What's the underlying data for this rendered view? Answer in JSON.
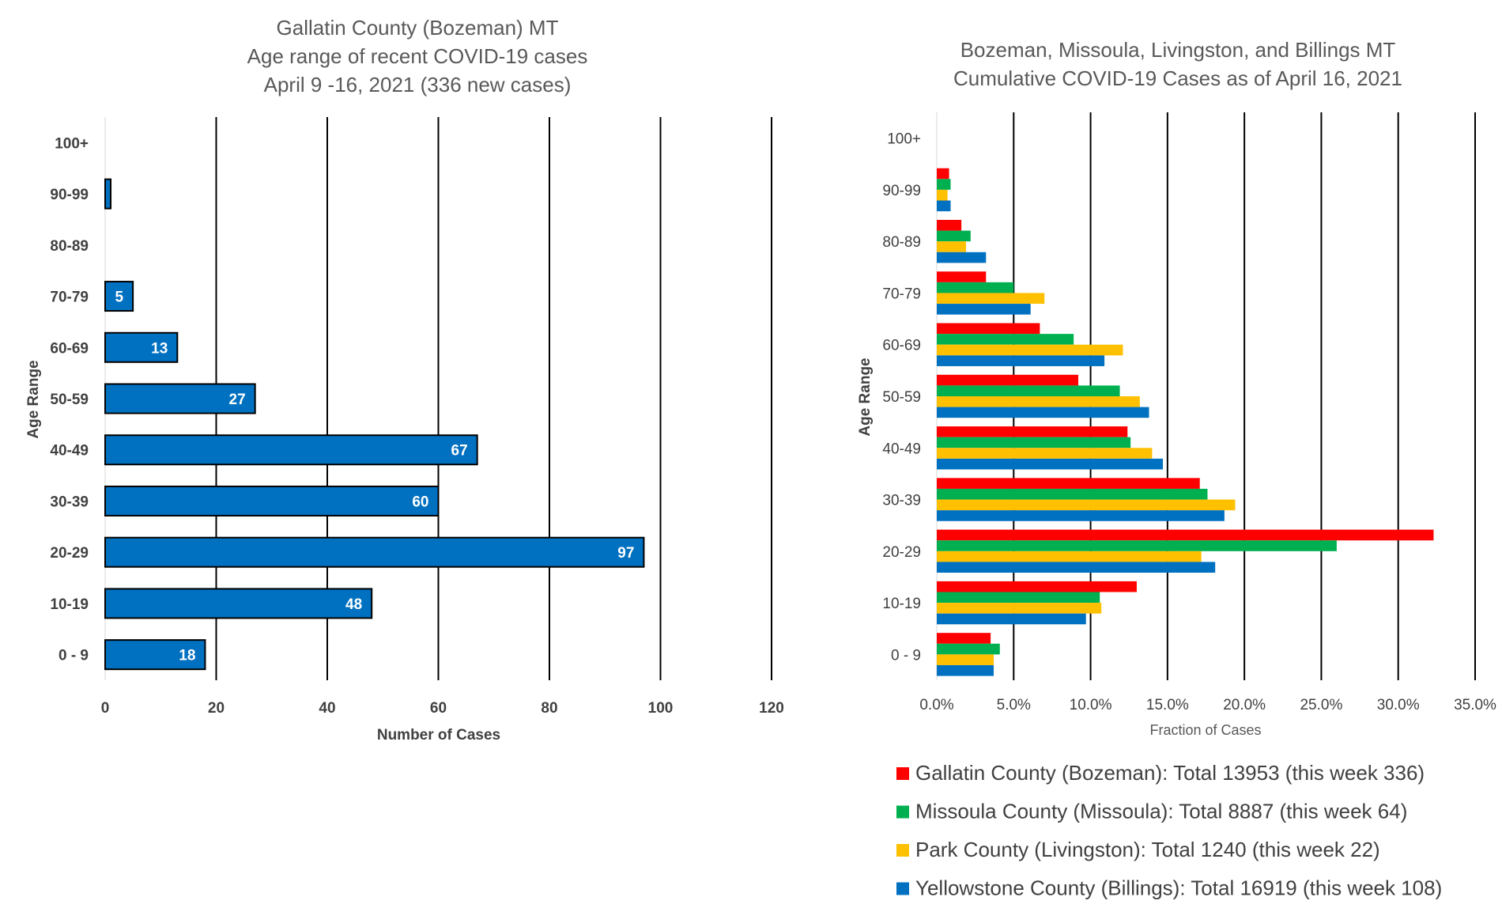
{
  "chart_data": [
    {
      "type": "bar",
      "orientation": "horizontal",
      "title": [
        "Gallatin County (Bozeman) MT",
        "Age range of recent COVID-19 cases",
        "April 9 -16, 2021 (336 new cases)"
      ],
      "xlabel": "Number of Cases",
      "ylabel": "Age Range",
      "categories": [
        "0 - 9",
        "10-19",
        "20-29",
        "30-39",
        "40-49",
        "50-59",
        "60-69",
        "70-79",
        "80-89",
        "90-99",
        "100+"
      ],
      "values": [
        18,
        48,
        97,
        60,
        67,
        27,
        13,
        5,
        0,
        1,
        0
      ],
      "data_labels": [
        "18",
        "48",
        "97",
        "60",
        "67",
        "27",
        "13",
        "5",
        "",
        "",
        ""
      ],
      "xlim": [
        0,
        120
      ],
      "xticks": [
        "0",
        "20",
        "40",
        "60",
        "80",
        "100",
        "120"
      ],
      "grid": "vertical",
      "bar_color": "#0070C0"
    },
    {
      "type": "bar",
      "orientation": "horizontal",
      "title": [
        "Bozeman, Missoula, Livingston, and Billings MT",
        "Cumulative COVID-19 Cases as of April 16, 2021"
      ],
      "xlabel": "Fraction of Cases",
      "ylabel": "Age Range",
      "categories": [
        "0 - 9",
        "10-19",
        "20-29",
        "30-39",
        "40-49",
        "50-59",
        "60-69",
        "70-79",
        "80-89",
        "90-99",
        "100+"
      ],
      "xlim": [
        0,
        0.35
      ],
      "xticks": [
        "0.0%",
        "5.0%",
        "10.0%",
        "15.0%",
        "20.0%",
        "25.0%",
        "30.0%",
        "35.0%"
      ],
      "grid": "vertical",
      "legend_position": "bottom",
      "series": [
        {
          "name": "Gallatin County (Bozeman): Total 13953 (this week 336)",
          "color": "#FF0000",
          "values": [
            0.035,
            0.13,
            0.323,
            0.171,
            0.124,
            0.092,
            0.067,
            0.032,
            0.016,
            0.008,
            0.0
          ]
        },
        {
          "name": "Missoula County (Missoula): Total 8887 (this week 64)",
          "color": "#00B050",
          "values": [
            0.041,
            0.106,
            0.26,
            0.176,
            0.126,
            0.119,
            0.089,
            0.05,
            0.022,
            0.009,
            0.0
          ]
        },
        {
          "name": "Park County (Livingston): Total 1240 (this week 22)",
          "color": "#FFC000",
          "values": [
            0.037,
            0.107,
            0.172,
            0.194,
            0.14,
            0.132,
            0.121,
            0.07,
            0.019,
            0.007,
            0.0
          ]
        },
        {
          "name": "Yellowstone County (Billings): Total 16919 (this week 108)",
          "color": "#0070C0",
          "values": [
            0.037,
            0.097,
            0.181,
            0.187,
            0.147,
            0.138,
            0.109,
            0.061,
            0.032,
            0.009,
            0.0
          ]
        }
      ]
    }
  ]
}
